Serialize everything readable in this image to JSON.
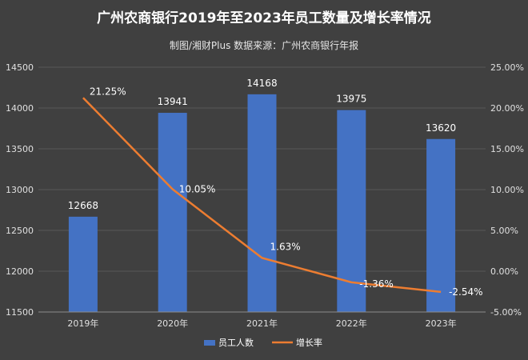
{
  "title": "广州农商银行2019年至2023年员工数量及增长率情况",
  "subtitle": "制图/湘财Plus 数据来源：广州农商银行年报",
  "colors": {
    "background": "#404040",
    "bar": "#4472c4",
    "line": "#ed7d31",
    "grid": "#595959",
    "text": "#ffffff"
  },
  "chart_data": {
    "type": "bar",
    "categories": [
      "2019年",
      "2020年",
      "2021年",
      "2022年",
      "2023年"
    ],
    "series": [
      {
        "name": "员工人数",
        "type": "bar",
        "axis": "left",
        "values": [
          12668,
          13941,
          14168,
          13975,
          13620
        ],
        "labels": [
          "12668",
          "13941",
          "14168",
          "13975",
          "13620"
        ]
      },
      {
        "name": "增长率",
        "type": "line",
        "axis": "right",
        "values": [
          21.25,
          10.05,
          1.63,
          -1.36,
          -2.54
        ],
        "labels": [
          "21.25%",
          "10.05%",
          "1.63%",
          "-1.36%",
          "-2.54%"
        ]
      }
    ],
    "y_left": {
      "min": 11500,
      "max": 14500,
      "ticks": [
        11500,
        12000,
        12500,
        13000,
        13500,
        14000,
        14500
      ]
    },
    "y_right": {
      "min": -5,
      "max": 25,
      "ticks": [
        "-5.00%",
        "0.00%",
        "5.00%",
        "10.00%",
        "15.00%",
        "20.00%",
        "25.00%"
      ]
    },
    "grid": true,
    "legend": "bottom"
  }
}
